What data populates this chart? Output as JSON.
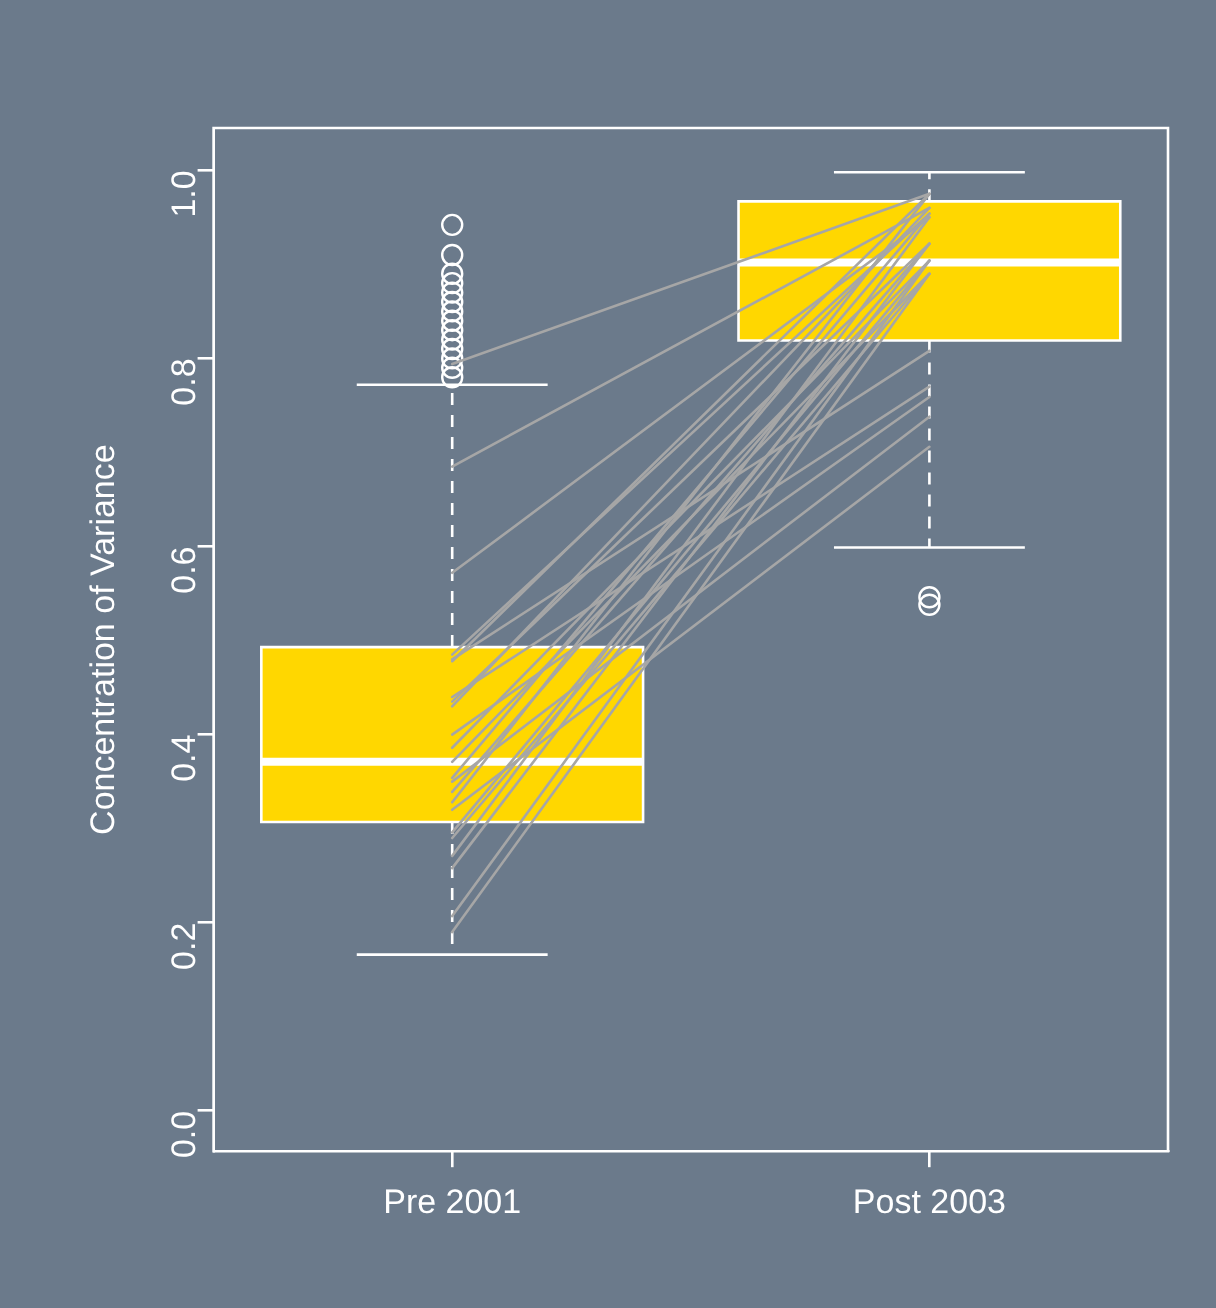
{
  "chart_data": {
    "type": "box",
    "ylabel": "Concentration of Variance",
    "categories": [
      "Pre 2001",
      "Post 2003"
    ],
    "ylim": [
      -0.043,
      1.045
    ],
    "yticks": [
      {
        "value": 0,
        "label": "0.0"
      },
      {
        "value": 0.2,
        "label": "0.2"
      },
      {
        "value": 0.4,
        "label": "0.4"
      },
      {
        "value": 0.6,
        "label": "0.6"
      },
      {
        "value": 0.8,
        "label": "0.8"
      },
      {
        "value": 1,
        "label": "1.0"
      }
    ],
    "grid": false,
    "legend": false,
    "marker": "none",
    "series": [
      {
        "color": "#ffd700",
        "boxes": [
          {
            "low": 0.166,
            "q1": 0.307,
            "median": 0.371,
            "q3": 0.493,
            "high": 0.772,
            "outliers": [
              0.942,
              0.91,
              0.89,
              0.88,
              0.87,
              0.86,
              0.85,
              0.84,
              0.83,
              0.82,
              0.81,
              0.8,
              0.79,
              0.78
            ]
          },
          {
            "low": 0.599,
            "q1": 0.819,
            "median": 0.902,
            "q3": 0.967,
            "high": 0.998,
            "outliers": [
              0.546,
              0.538
            ]
          }
        ]
      },
      {
        "type": "line",
        "color": "#a6a6a6",
        "values": [
          0.794,
          0.975
        ]
      },
      {
        "type": "line",
        "color": "#a6a6a6",
        "values": [
          0.685,
          0.96
        ]
      },
      {
        "type": "line",
        "color": "#a6a6a6",
        "values": [
          0.572,
          0.95
        ]
      },
      {
        "type": "line",
        "color": "#a6a6a6",
        "values": [
          0.485,
          0.954
        ]
      },
      {
        "type": "line",
        "color": "#a6a6a6",
        "values": [
          0.478,
          0.975
        ]
      },
      {
        "type": "line",
        "color": "#a6a6a6",
        "values": [
          0.435,
          0.922
        ]
      },
      {
        "type": "line",
        "color": "#a6a6a6",
        "values": [
          0.43,
          0.96
        ]
      },
      {
        "type": "line",
        "color": "#a6a6a6",
        "values": [
          0.386,
          0.904
        ]
      },
      {
        "type": "line",
        "color": "#a6a6a6",
        "values": [
          0.371,
          0.89
        ]
      },
      {
        "type": "line",
        "color": "#a6a6a6",
        "values": [
          0.354,
          0.954
        ]
      },
      {
        "type": "line",
        "color": "#a6a6a6",
        "values": [
          0.339,
          0.922
        ]
      },
      {
        "type": "line",
        "color": "#a6a6a6",
        "values": [
          0.328,
          0.975
        ]
      },
      {
        "type": "line",
        "color": "#a6a6a6",
        "values": [
          0.296,
          0.904
        ]
      },
      {
        "type": "line",
        "color": "#a6a6a6",
        "values": [
          0.29,
          0.89
        ]
      },
      {
        "type": "line",
        "color": "#a6a6a6",
        "values": [
          0.271,
          0.95
        ]
      },
      {
        "type": "line",
        "color": "#a6a6a6",
        "values": [
          0.258,
          0.922
        ]
      },
      {
        "type": "line",
        "color": "#a6a6a6",
        "values": [
          0.207,
          0.904
        ]
      },
      {
        "type": "line",
        "color": "#a6a6a6",
        "values": [
          0.19,
          0.89
        ]
      },
      {
        "type": "line",
        "color": "#a6a6a6",
        "values": [
          0.48,
          0.808
        ]
      },
      {
        "type": "line",
        "color": "#a6a6a6",
        "values": [
          0.44,
          0.77
        ]
      },
      {
        "type": "line",
        "color": "#a6a6a6",
        "values": [
          0.4,
          0.759
        ]
      },
      {
        "type": "line",
        "color": "#a6a6a6",
        "values": [
          0.35,
          0.738
        ]
      },
      {
        "type": "line",
        "color": "#a6a6a6",
        "values": [
          0.32,
          0.706
        ]
      }
    ]
  }
}
